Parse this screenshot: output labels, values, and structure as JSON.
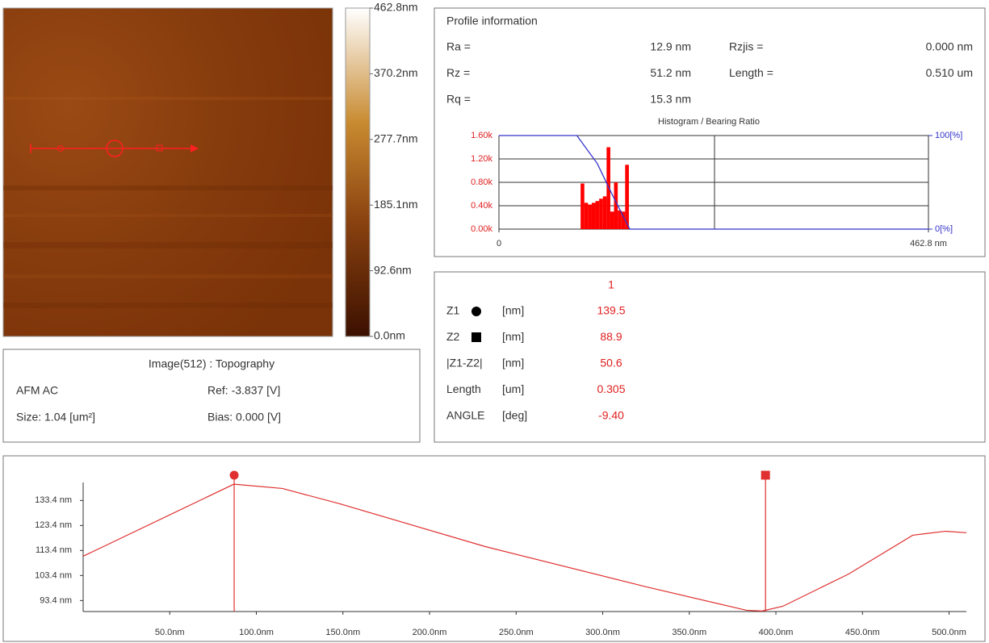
{
  "colorbar": {
    "lim": [
      0,
      462.8
    ],
    "ticks": [
      {
        "value": 462.8,
        "label": "462.8nm"
      },
      {
        "value": 370.2,
        "label": "370.2nm"
      },
      {
        "value": 277.7,
        "label": "277.7nm"
      },
      {
        "value": 185.1,
        "label": "185.1nm"
      },
      {
        "value": 92.6,
        "label": "92.6nm"
      },
      {
        "value": 0,
        "label": "0.0nm"
      }
    ]
  },
  "image_info": {
    "title": "Image(512) : Topography",
    "mode": "AFM AC",
    "ref": "Ref: -3.837 [V]",
    "size": "Size: 1.04 [um²]",
    "bias": "Bias: 0.000 [V]"
  },
  "profile_info": {
    "title": "Profile information",
    "left": [
      {
        "label": "Ra =",
        "value": "12.9 nm"
      },
      {
        "label": "Rz =",
        "value": "51.2 nm"
      },
      {
        "label": "Rq =",
        "value": "15.3 nm"
      }
    ],
    "right": [
      {
        "label": "Rzjis =",
        "value": "0.000 nm"
      },
      {
        "label": "Length =",
        "value": "0.510 um"
      }
    ]
  },
  "measurements": {
    "header": "1",
    "rows": [
      {
        "name": "Z1",
        "unit": "[nm]",
        "value": "139.5"
      },
      {
        "name": "Z2",
        "unit": "[nm]",
        "value": "88.9"
      },
      {
        "name": "|Z1-Z2|",
        "unit": "[nm]",
        "value": "50.6"
      },
      {
        "name": "Length",
        "unit": "[um]",
        "value": "0.305"
      },
      {
        "name": "ANGLE",
        "unit": "[deg]",
        "value": "-9.40"
      }
    ]
  },
  "chart_data": [
    {
      "type": "histogram",
      "title": "Histogram / Bearing Ratio",
      "bins": [
        88,
        92,
        96,
        100,
        104,
        108,
        112,
        116,
        120,
        124,
        128,
        132,
        136,
        140
      ],
      "values": [
        780,
        450,
        420,
        450,
        480,
        520,
        560,
        1400,
        300,
        800,
        320,
        300,
        1100
      ],
      "color": "#ff0000",
      "xlim": [
        0,
        462.8
      ],
      "xticks": [
        0,
        {
          "value": 462.8,
          "label": "462.8 nm"
        }
      ],
      "ylim": [
        0,
        1600
      ],
      "yticks": [
        {
          "value": 0,
          "label": "0.00k"
        },
        {
          "value": 400,
          "label": "0.40k"
        },
        {
          "value": 800,
          "label": "0.80k"
        },
        {
          "value": 1200,
          "label": "1.20k"
        },
        {
          "value": 1600,
          "label": "1.60k"
        }
      ],
      "y2lim": [
        0,
        100
      ],
      "y2ticks": [
        {
          "value": 0,
          "label": "0[%]"
        },
        {
          "value": 100,
          "label": "100[%]"
        }
      ],
      "bearing": {
        "axis": "y2",
        "color": "#3333cc",
        "x": [
          0,
          84,
          106,
          123,
          141,
          462.8
        ],
        "values": [
          100,
          100,
          70,
          35,
          0,
          0
        ]
      },
      "grid": true
    },
    {
      "type": "line",
      "x": [
        0,
        87,
        115,
        148,
        232,
        325,
        383,
        392,
        404,
        442,
        479,
        498,
        510
      ],
      "values": [
        111.1,
        139.9,
        138.2,
        132.1,
        115.0,
        98.9,
        89.5,
        89.2,
        91.1,
        104.0,
        119.5,
        121.1,
        120.5
      ],
      "color": "#e03030",
      "xlim": [
        0,
        510
      ],
      "xticks": [
        {
          "value": 50,
          "label": "50.0nm"
        },
        {
          "value": 100,
          "label": "100.0nm"
        },
        {
          "value": 150,
          "label": "150.0nm"
        },
        {
          "value": 200,
          "label": "200.0nm"
        },
        {
          "value": 250,
          "label": "250.0nm"
        },
        {
          "value": 300,
          "label": "300.0nm"
        },
        {
          "value": 350,
          "label": "350.0nm"
        },
        {
          "value": 400,
          "label": "400.0nm"
        },
        {
          "value": 450,
          "label": "450.0nm"
        },
        {
          "value": 500,
          "label": "500.0nm"
        }
      ],
      "ylim": [
        89.0,
        140.6
      ],
      "yticks": [
        {
          "value": 93.4,
          "label": "93.4 nm"
        },
        {
          "value": 103.4,
          "label": "103.4 nm"
        },
        {
          "value": 113.4,
          "label": "113.4 nm"
        },
        {
          "value": 123.4,
          "label": "123.4 nm"
        },
        {
          "value": 133.4,
          "label": "133.4 nm"
        }
      ],
      "cursors": [
        {
          "x": 87.2,
          "marker": "circle"
        },
        {
          "x": 394,
          "marker": "square"
        }
      ]
    }
  ]
}
